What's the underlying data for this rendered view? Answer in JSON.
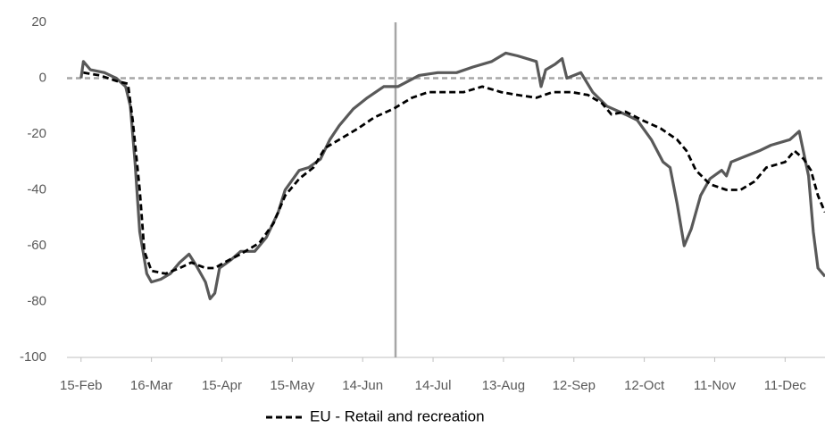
{
  "chart_data": {
    "type": "line",
    "xlim": [
      -6,
      317
    ],
    "xticks": [
      {
        "value": 0,
        "label": "15-Feb"
      },
      {
        "value": 30,
        "label": "16-Mar"
      },
      {
        "value": 60,
        "label": "15-Apr"
      },
      {
        "value": 90,
        "label": "15-May"
      },
      {
        "value": 120,
        "label": "14-Jun"
      },
      {
        "value": 150,
        "label": "14-Jul"
      },
      {
        "value": 180,
        "label": "13-Aug"
      },
      {
        "value": 210,
        "label": "12-Sep"
      },
      {
        "value": 240,
        "label": "12-Oct"
      },
      {
        "value": 270,
        "label": "11-Nov"
      },
      {
        "value": 300,
        "label": "11-Dec"
      }
    ],
    "ylim": [
      -100,
      20
    ],
    "yticks": [
      -100,
      -80,
      -60,
      -40,
      -20,
      0,
      20
    ],
    "reference_lines": {
      "y": 0,
      "x": 134
    },
    "series": [
      {
        "color": "#595959",
        "dashed": false,
        "x": [
          0,
          1,
          4,
          10,
          15,
          19,
          21,
          23,
          25,
          28,
          30,
          34,
          38,
          42,
          46,
          49,
          53,
          55,
          57,
          59,
          64,
          68,
          74,
          79,
          84,
          87,
          93,
          97,
          102,
          106,
          110,
          116,
          122,
          129,
          135,
          144,
          152,
          160,
          167,
          175,
          181,
          186,
          194,
          196,
          198,
          202,
          205,
          207,
          213,
          218,
          224,
          232,
          237,
          243,
          248,
          251,
          254,
          257,
          260,
          264,
          268,
          273,
          275,
          277,
          283,
          289,
          294,
          302,
          306,
          310,
          312,
          314,
          317
        ],
        "values": [
          0,
          6,
          3,
          2,
          0,
          -3,
          -10,
          -30,
          -55,
          -70,
          -73,
          -72,
          -70,
          -66,
          -63,
          -67,
          -73,
          -79,
          -77,
          -68,
          -65,
          -62,
          -62,
          -57,
          -48,
          -40,
          -33,
          -32,
          -29,
          -22,
          -17,
          -11,
          -7,
          -3,
          -3,
          1,
          2,
          2,
          4,
          6,
          9,
          8,
          6,
          -3,
          3,
          5,
          7,
          0,
          2,
          -5,
          -10,
          -13,
          -15,
          -22,
          -30,
          -32,
          -45,
          -60,
          -54,
          -42,
          -36,
          -33,
          -35,
          -30,
          -28,
          -26,
          -24,
          -22,
          -19,
          -35,
          -55,
          -68,
          -71
        ]
      },
      {
        "name": "EU - Retail and recreation",
        "color": "#000000",
        "dashed": true,
        "x": [
          1,
          8,
          15,
          20,
          22,
          25,
          27,
          30,
          36,
          42,
          47,
          53,
          57,
          61,
          68,
          76,
          82,
          87,
          93,
          99,
          104,
          110,
          118,
          125,
          133,
          141,
          148,
          156,
          163,
          171,
          179,
          186,
          194,
          201,
          209,
          216,
          222,
          226,
          232,
          239,
          247,
          254,
          258,
          262,
          268,
          275,
          281,
          287,
          292,
          300,
          304,
          308,
          311,
          314,
          317
        ],
        "values": [
          2,
          1,
          -1,
          -2,
          -15,
          -40,
          -62,
          -69,
          -70,
          -68,
          -66,
          -68,
          -68,
          -66,
          -63,
          -59,
          -52,
          -42,
          -36,
          -32,
          -25,
          -22,
          -18,
          -14,
          -11,
          -7,
          -5,
          -5,
          -5,
          -3,
          -5,
          -6,
          -7,
          -5,
          -5,
          -6,
          -9,
          -13,
          -12,
          -15,
          -18,
          -22,
          -26,
          -33,
          -38,
          -40,
          -40,
          -37,
          -32,
          -30,
          -26,
          -29,
          -33,
          -42,
          -48
        ]
      }
    ]
  }
}
